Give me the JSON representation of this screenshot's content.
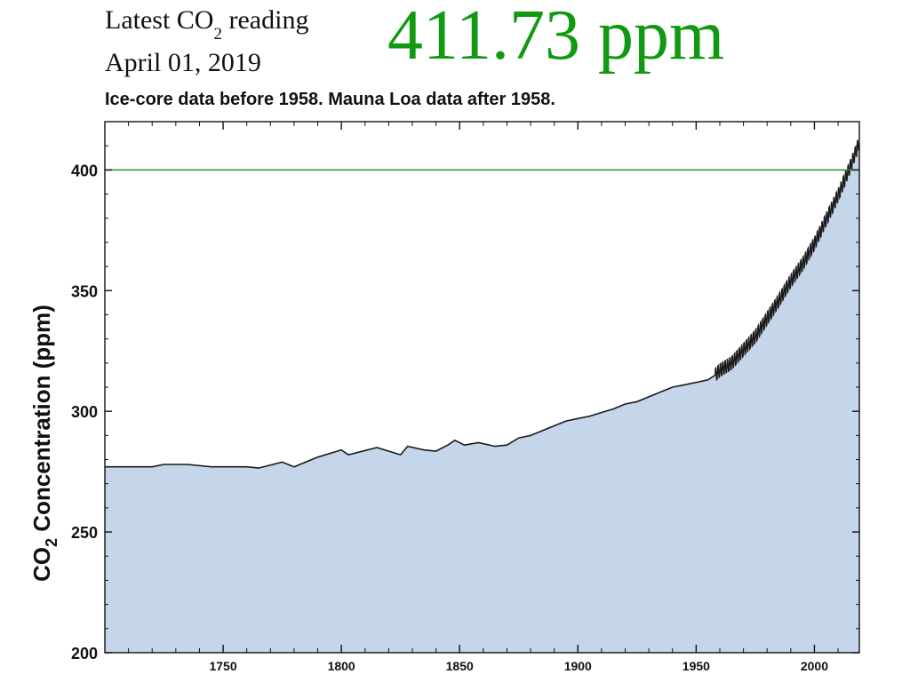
{
  "header": {
    "reading_prefix": "Latest CO",
    "reading_subscript": "2",
    "reading_suffix": " reading",
    "reading_date": "April 01, 2019",
    "reading_value": "411.73 ppm"
  },
  "caption": "Ice-core data before 1958. Mauna Loa data after 1958.",
  "colors": {
    "fill": "#c5d5ea",
    "line": "#1a1a1a",
    "reference_line": "#2e8b2e",
    "value_text": "#119911"
  },
  "chart_data": {
    "type": "area",
    "title": "",
    "ylabel_prefix": "CO",
    "ylabel_subscript": "2",
    "ylabel_suffix": " Concentration (ppm)",
    "xlabel": "",
    "xlim": [
      1700,
      2019
    ],
    "ylim": [
      200,
      420
    ],
    "x_ticks": [
      1750,
      1800,
      1850,
      1900,
      1950,
      2000
    ],
    "y_ticks": [
      200,
      250,
      300,
      350,
      400
    ],
    "reference_line": 400,
    "grid": false,
    "ice_core": {
      "x": [
        1700,
        1710,
        1720,
        1725,
        1735,
        1745,
        1752,
        1760,
        1765,
        1775,
        1780,
        1790,
        1800,
        1803,
        1815,
        1825,
        1828,
        1835,
        1840,
        1845,
        1848,
        1852,
        1858,
        1865,
        1870,
        1875,
        1880,
        1885,
        1890,
        1895,
        1900,
        1905,
        1910,
        1915,
        1920,
        1925,
        1930,
        1935,
        1940,
        1945,
        1950,
        1955,
        1958
      ],
      "y": [
        277,
        277,
        277,
        278,
        278,
        277,
        277,
        277,
        276.5,
        279,
        277,
        281,
        284,
        282,
        285,
        282,
        285.5,
        284,
        283.5,
        286,
        288,
        286,
        287,
        285.5,
        286,
        289,
        290,
        292,
        294,
        296,
        297,
        298,
        299.5,
        301,
        303,
        304,
        306,
        308,
        310,
        311,
        312,
        313,
        315
      ]
    },
    "mauna_loa": {
      "x": [
        1958,
        1960,
        1965,
        1970,
        1975,
        1980,
        1985,
        1990,
        1995,
        2000,
        2005,
        2010,
        2015,
        2019
      ],
      "y": [
        315,
        317,
        320,
        325.5,
        331,
        338.5,
        346,
        354,
        361,
        369.5,
        379.5,
        389.5,
        401,
        411.5
      ]
    }
  }
}
